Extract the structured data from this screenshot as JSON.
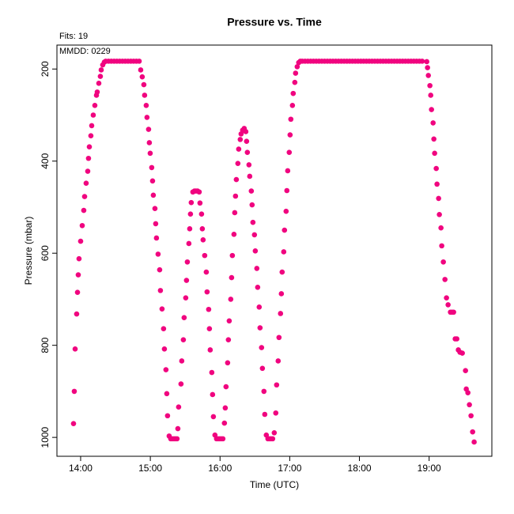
{
  "chart_data": {
    "type": "scatter",
    "title": "Pressure  vs. Time",
    "annotations": [
      "Fits: 19",
      "MMDD: 0229"
    ],
    "xlabel": "Time (UTC)",
    "ylabel": "Pressure (mbar)",
    "xlim": [
      13.66,
      19.9
    ],
    "xticks": [
      {
        "value": 14,
        "label": "14:00"
      },
      {
        "value": 15,
        "label": "15:00"
      },
      {
        "value": 16,
        "label": "16:00"
      },
      {
        "value": 17,
        "label": "17:00"
      },
      {
        "value": 18,
        "label": "18:00"
      },
      {
        "value": 19,
        "label": "19:00"
      }
    ],
    "ylim": [
      148,
      1041
    ],
    "y_reversed": true,
    "yticks": [
      200,
      400,
      600,
      800,
      1000
    ],
    "grid": false,
    "series": [
      {
        "color": "#f0047f",
        "x": [
          13.898,
          13.909,
          13.921,
          13.943,
          13.955,
          13.966,
          13.977,
          14.0,
          14.023,
          14.045,
          14.057,
          14.079,
          14.102,
          14.113,
          14.125,
          14.147,
          14.159,
          14.181,
          14.204,
          14.227,
          14.238,
          14.261,
          14.283,
          14.295,
          14.317,
          14.34,
          14.36,
          14.4,
          14.44,
          14.48,
          14.52,
          14.56,
          14.6,
          14.64,
          14.68,
          14.72,
          14.76,
          14.8,
          14.84,
          14.862,
          14.884,
          14.907,
          14.918,
          14.941,
          14.952,
          14.975,
          14.986,
          14.998,
          15.02,
          15.032,
          15.043,
          15.066,
          15.077,
          15.088,
          15.111,
          15.134,
          15.145,
          15.168,
          15.19,
          15.202,
          15.224,
          15.236,
          15.247,
          15.27,
          15.293,
          15.315,
          15.338,
          15.36,
          15.383,
          15.395,
          15.406,
          15.44,
          15.451,
          15.474,
          15.485,
          15.508,
          15.519,
          15.531,
          15.553,
          15.565,
          15.576,
          15.587,
          15.61,
          15.633,
          15.655,
          15.678,
          15.701,
          15.712,
          15.735,
          15.746,
          15.757,
          15.78,
          15.803,
          15.814,
          15.837,
          15.848,
          15.859,
          15.882,
          15.893,
          15.905,
          15.927,
          15.95,
          15.973,
          15.995,
          16.018,
          16.041,
          16.063,
          16.075,
          16.086,
          16.109,
          16.12,
          16.132,
          16.154,
          16.166,
          16.177,
          16.2,
          16.211,
          16.222,
          16.234,
          16.256,
          16.268,
          16.29,
          16.302,
          16.324,
          16.347,
          16.37,
          16.381,
          16.392,
          16.415,
          16.426,
          16.449,
          16.46,
          16.472,
          16.494,
          16.506,
          16.528,
          16.54,
          16.562,
          16.574,
          16.596,
          16.608,
          16.63,
          16.642,
          16.664,
          16.687,
          16.71,
          16.732,
          16.755,
          16.778,
          16.8,
          16.812,
          16.834,
          16.846,
          16.868,
          16.88,
          16.891,
          16.914,
          16.925,
          16.948,
          16.959,
          16.971,
          16.993,
          17.005,
          17.016,
          17.039,
          17.05,
          17.073,
          17.084,
          17.107,
          17.129,
          17.152,
          17.18,
          17.22,
          17.26,
          17.3,
          17.34,
          17.38,
          17.42,
          17.46,
          17.5,
          17.54,
          17.58,
          17.62,
          17.66,
          17.7,
          17.74,
          17.78,
          17.82,
          17.86,
          17.9,
          17.94,
          17.98,
          18.02,
          18.06,
          18.1,
          18.14,
          18.18,
          18.22,
          18.26,
          18.3,
          18.34,
          18.38,
          18.42,
          18.46,
          18.5,
          18.54,
          18.58,
          18.62,
          18.66,
          18.7,
          18.74,
          18.78,
          18.82,
          18.86,
          18.9,
          18.966,
          18.977,
          18.989,
          19.011,
          19.023,
          19.034,
          19.057,
          19.068,
          19.079,
          19.102,
          19.113,
          19.136,
          19.147,
          19.17,
          19.181,
          19.204,
          19.227,
          19.249,
          19.272,
          19.306,
          19.329,
          19.351,
          19.374,
          19.397,
          19.419,
          19.442,
          19.476,
          19.522,
          19.533,
          19.556,
          19.578,
          19.601,
          19.624,
          19.646
        ],
        "values": [
          970,
          900,
          808,
          732,
          685,
          647,
          612,
          574,
          540,
          507,
          477,
          448,
          422,
          394,
          369,
          345,
          323,
          300,
          279,
          257,
          250,
          231,
          216,
          202,
          191,
          185,
          183,
          183,
          183,
          183,
          183,
          183,
          183,
          183,
          183,
          183,
          183,
          183,
          183,
          202,
          217,
          234,
          257,
          279,
          305,
          331,
          360,
          383,
          414,
          443,
          474,
          503,
          536,
          567,
          602,
          636,
          681,
          721,
          764,
          808,
          853,
          905,
          953,
          997,
          1003,
          1003,
          1003,
          1003,
          1003,
          981,
          934,
          884,
          834,
          788,
          740,
          697,
          659,
          619,
          579,
          547,
          515,
          490,
          467,
          465,
          465,
          465,
          467,
          491,
          515,
          547,
          571,
          605,
          641,
          684,
          722,
          764,
          810,
          859,
          907,
          955,
          995,
          1003,
          1003,
          1003,
          1003,
          1003,
          969,
          936,
          890,
          838,
          788,
          747,
          700,
          653,
          605,
          559,
          512,
          476,
          440,
          405,
          374,
          353,
          341,
          333,
          329,
          336,
          357,
          381,
          408,
          433,
          465,
          495,
          533,
          560,
          595,
          633,
          674,
          717,
          762,
          805,
          850,
          900,
          950,
          995,
          1003,
          1003,
          1003,
          1003,
          990,
          947,
          886,
          834,
          783,
          731,
          688,
          641,
          597,
          550,
          509,
          464,
          421,
          381,
          343,
          309,
          279,
          253,
          229,
          209,
          195,
          186,
          183,
          183,
          183,
          183,
          183,
          183,
          183,
          183,
          183,
          183,
          183,
          183,
          183,
          183,
          183,
          183,
          183,
          183,
          183,
          183,
          183,
          183,
          183,
          183,
          183,
          183,
          183,
          183,
          183,
          183,
          183,
          183,
          183,
          183,
          183,
          183,
          183,
          183,
          183,
          183,
          183,
          183,
          183,
          183,
          183,
          184,
          197,
          214,
          236,
          257,
          288,
          317,
          352,
          383,
          416,
          450,
          481,
          516,
          545,
          584,
          619,
          657,
          697,
          712,
          728,
          728,
          728,
          786,
          786,
          810,
          815,
          817,
          855,
          895,
          903,
          929,
          953,
          988,
          1010
        ]
      }
    ]
  }
}
